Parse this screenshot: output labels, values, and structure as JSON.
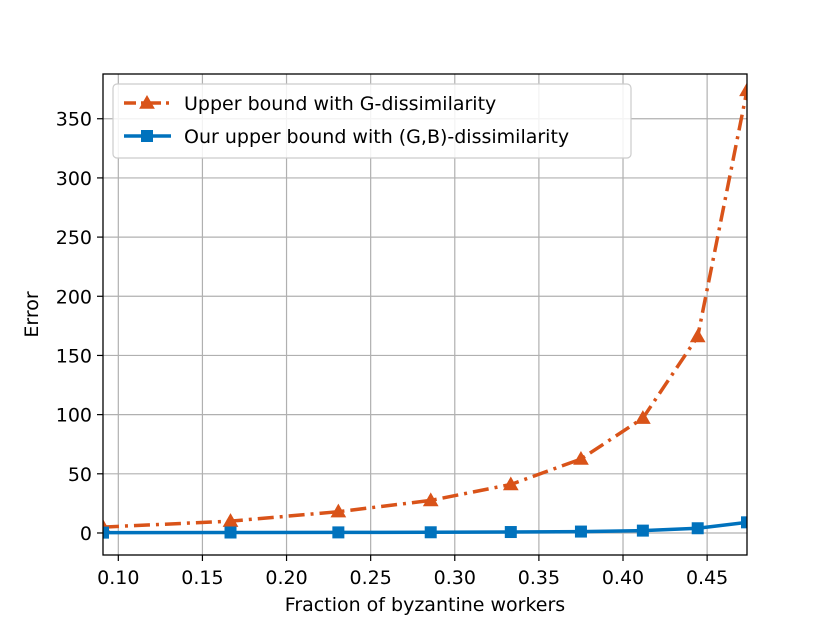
{
  "chart_data": {
    "type": "line",
    "title": "",
    "xlabel": "Fraction of byzantine workers",
    "ylabel": "Error",
    "xlim": [
      0.0909,
      0.4737
    ],
    "ylim": [
      -18.6,
      387.8
    ],
    "xticks": [
      0.1,
      0.15,
      0.2,
      0.25,
      0.3,
      0.35,
      0.4,
      0.45
    ],
    "xtick_labels": [
      "0.10",
      "0.15",
      "0.20",
      "0.25",
      "0.30",
      "0.35",
      "0.40",
      "0.45"
    ],
    "yticks": [
      0,
      50,
      100,
      150,
      200,
      250,
      300,
      350
    ],
    "ytick_labels": [
      "0",
      "50",
      "100",
      "150",
      "200",
      "250",
      "300",
      "350"
    ],
    "grid": true,
    "legend_position": "top-left",
    "series": [
      {
        "name": "Upper bound with G-dissimilarity",
        "color": "#d95319",
        "line_style": "dash-dot",
        "marker": "triangle",
        "x": [
          0.0909,
          0.1667,
          0.2308,
          0.2857,
          0.3333,
          0.375,
          0.4118,
          0.4444,
          0.4737
        ],
        "y": [
          5,
          10,
          18,
          27.5,
          41,
          62.5,
          97,
          166,
          374
        ]
      },
      {
        "name": "Our upper bound with (G,B)-dissimilarity",
        "color": "#0072bd",
        "line_style": "solid",
        "marker": "square",
        "x": [
          0.0909,
          0.1667,
          0.2308,
          0.2857,
          0.3333,
          0.375,
          0.4118,
          0.4444,
          0.4737
        ],
        "y": [
          0.3,
          0.4,
          0.5,
          0.6,
          0.8,
          1.2,
          2.0,
          4.0,
          9.0
        ]
      }
    ]
  }
}
